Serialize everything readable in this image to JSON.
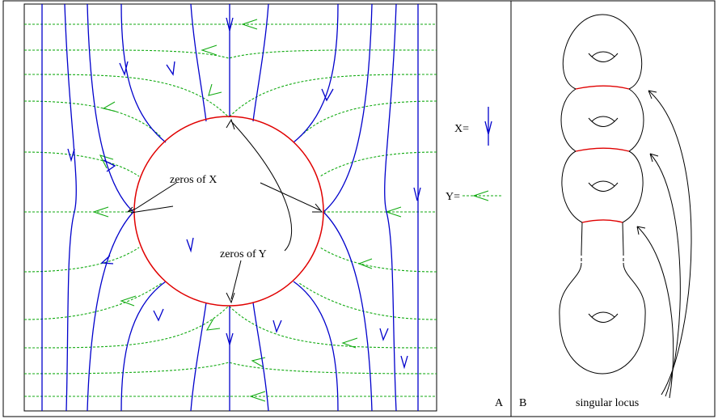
{
  "panel_a": {
    "label": "A",
    "zeros_x_label": "zeros of X",
    "zeros_y_label": "zeros of Y",
    "legend_x": "X=",
    "legend_y": "Y="
  },
  "panel_b": {
    "label": "B",
    "singular_locus_label": "singular locus"
  }
}
